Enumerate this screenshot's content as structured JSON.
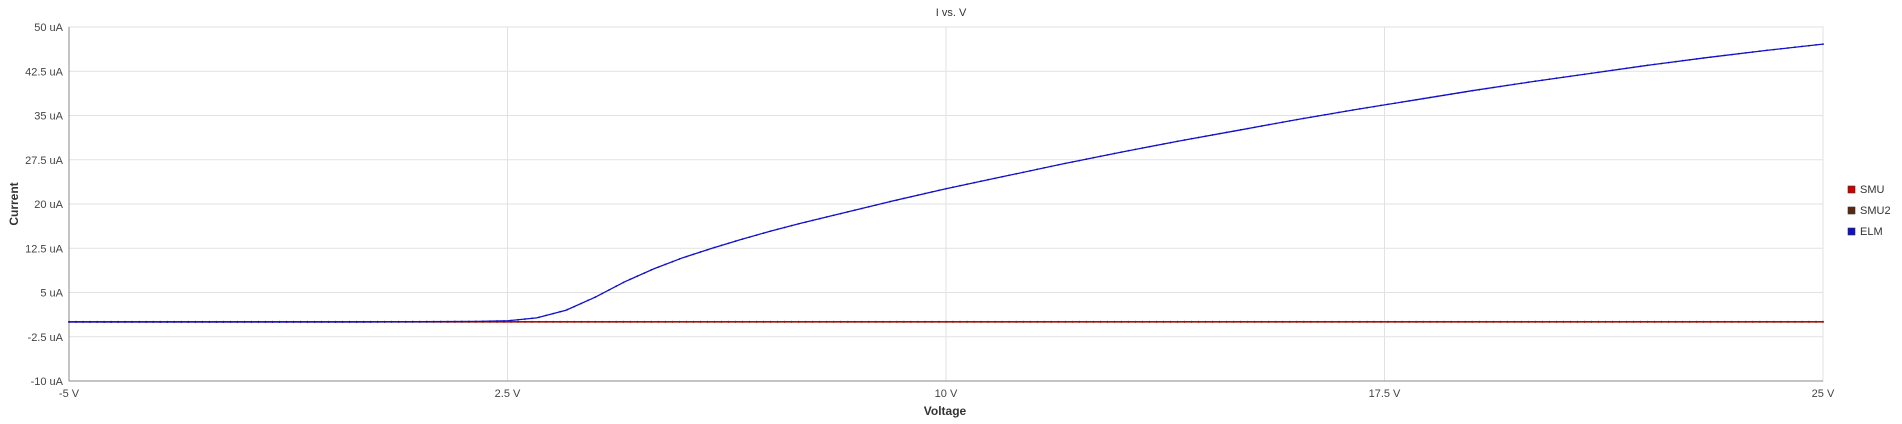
{
  "chart_data": {
    "type": "line",
    "title": "I vs. V",
    "xlabel": "Voltage",
    "ylabel": "Current",
    "xlim": [
      -5,
      25
    ],
    "ylim": [
      -10,
      50
    ],
    "x_ticks": [
      -5,
      2.5,
      10,
      17.5,
      25
    ],
    "x_tick_labels": [
      "-5 V",
      "2.5 V",
      "10 V",
      "17.5 V",
      "25 V"
    ],
    "y_ticks": [
      50,
      42.5,
      35,
      27.5,
      20,
      12.5,
      5,
      -2.5,
      -10
    ],
    "y_tick_labels": [
      "50 uA",
      "42.5 uA",
      "35 uA",
      "27.5 uA",
      "20 uA",
      "12.5 uA",
      "5 uA",
      "-2.5 uA",
      "-10 uA"
    ],
    "grid": true,
    "legend_position": "right",
    "series": [
      {
        "name": "SMU",
        "color": "#cc0000",
        "x": [
          -5,
          0,
          2.5,
          5,
          10,
          15,
          20,
          25
        ],
        "y": [
          0.05,
          0.05,
          0.05,
          0.05,
          0.05,
          0.05,
          0.05,
          0.05
        ]
      },
      {
        "name": "SMU2",
        "color": "#5a2a10",
        "x": [
          -5,
          0,
          2.5,
          5,
          10,
          15,
          20,
          25
        ],
        "y": [
          0.0,
          0.0,
          0.0,
          0.0,
          0.0,
          0.0,
          0.0,
          0.0
        ]
      },
      {
        "name": "ELM",
        "color": "#1010c8",
        "x": [
          -5,
          -2.5,
          0,
          1,
          2,
          2.5,
          3,
          3.5,
          4,
          4.5,
          5,
          5.5,
          6,
          6.5,
          7,
          7.5,
          8,
          9,
          10,
          11,
          12,
          13,
          14,
          15,
          16,
          17,
          17.5,
          18,
          19,
          20,
          21,
          22,
          23,
          24,
          25
        ],
        "y": [
          0.0,
          0.0,
          0.0,
          0.05,
          0.1,
          0.2,
          0.7,
          2.0,
          4.2,
          6.8,
          9.0,
          10.9,
          12.5,
          14.0,
          15.4,
          16.7,
          17.9,
          20.3,
          22.6,
          24.7,
          26.8,
          28.8,
          30.7,
          32.5,
          34.3,
          36.0,
          36.8,
          37.6,
          39.2,
          40.7,
          42.1,
          43.5,
          44.8,
          46.0,
          47.1
        ]
      }
    ]
  }
}
